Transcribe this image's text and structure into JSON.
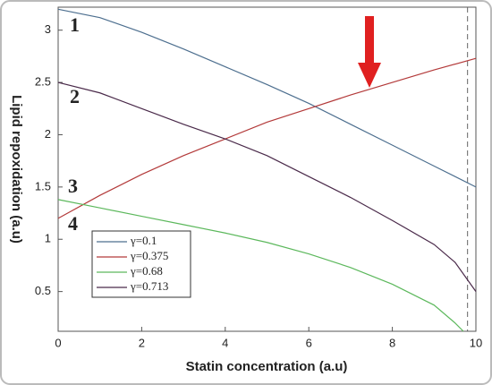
{
  "chart_data": {
    "type": "line",
    "xlabel": "Statin concentration (a.u)",
    "ylabel": "Lipid repoxidation (a.u)",
    "xlim": [
      0,
      10
    ],
    "xticks": [
      0,
      2,
      4,
      6,
      8,
      10
    ],
    "ylim": [
      0.12,
      3.22
    ],
    "yticks": [
      0.5,
      1,
      1.5,
      2,
      2.5,
      3
    ],
    "grid": false,
    "reference_line": 9.8,
    "annotations": [
      "1",
      "2",
      "3",
      "4"
    ],
    "series": [
      {
        "name": "γ=0.1",
        "color": "#4d6f8f",
        "x": [
          0,
          1,
          2,
          3,
          4,
          5,
          6,
          7,
          8,
          9,
          10
        ],
        "values": [
          3.2,
          3.12,
          2.98,
          2.82,
          2.65,
          2.48,
          2.3,
          2.1,
          1.9,
          1.7,
          1.5
        ]
      },
      {
        "name": "γ=0.375",
        "color": "#b33a3a",
        "x": [
          0,
          1,
          2,
          3,
          4,
          5,
          6,
          7,
          8,
          9,
          10
        ],
        "values": [
          1.2,
          1.42,
          1.62,
          1.8,
          1.96,
          2.12,
          2.25,
          2.38,
          2.5,
          2.62,
          2.73
        ]
      },
      {
        "name": "γ=0.68",
        "color": "#5cb85c",
        "x": [
          0,
          1,
          2,
          3,
          4,
          5,
          6,
          7,
          8,
          9,
          9.5,
          9.7
        ],
        "values": [
          1.38,
          1.3,
          1.22,
          1.14,
          1.06,
          0.97,
          0.86,
          0.73,
          0.57,
          0.37,
          0.2,
          0.12
        ]
      },
      {
        "name": "γ=0.713",
        "color": "#4a2a4a",
        "x": [
          0,
          1,
          2,
          3,
          4,
          5,
          6,
          7,
          8,
          9,
          9.5,
          10
        ],
        "values": [
          2.5,
          2.4,
          2.25,
          2.1,
          1.96,
          1.8,
          1.6,
          1.4,
          1.18,
          0.95,
          0.78,
          0.5
        ]
      }
    ]
  }
}
